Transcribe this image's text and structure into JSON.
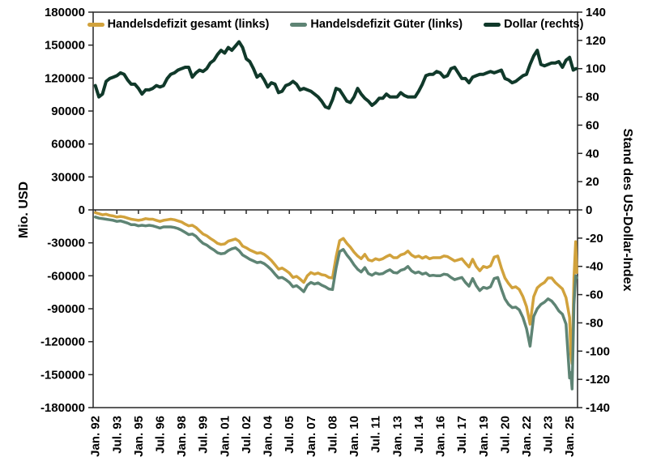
{
  "chart_data": {
    "type": "line",
    "title": "",
    "ylabel_left": "Mio. USD",
    "ylabel_right": "Stand des US-Dollar-Index",
    "ylim_left": [
      -180000,
      180000
    ],
    "ylim_right": [
      -140,
      140
    ],
    "xlim": [
      1991.85,
      2025.55
    ],
    "grid": false,
    "legend_position": "top-inside-horizontal",
    "frame_color": "#262626",
    "text_color": "#000000",
    "yticks_left": [
      180000,
      150000,
      120000,
      90000,
      60000,
      30000,
      0,
      -30000,
      -60000,
      -90000,
      -120000,
      -150000,
      -180000
    ],
    "yticks_right": [
      140,
      120,
      100,
      80,
      60,
      40,
      20,
      0,
      -20,
      -40,
      -60,
      -80,
      -100,
      -120,
      -140
    ],
    "xtick_positions": [
      1992,
      1993.5,
      1995,
      1996.5,
      1998,
      1999.5,
      2001,
      2002.5,
      2004,
      2005.5,
      2007,
      2008.5,
      2010,
      2011.5,
      2013,
      2014.5,
      2016,
      2017.5,
      2019,
      2020.5,
      2022,
      2023.5,
      2025
    ],
    "xtick_labels": [
      "Jan. 92",
      "Jul. 93",
      "Jan. 95",
      "Jul. 96",
      "Jan. 98",
      "Jul. 99",
      "Jan. 01",
      "Jul. 02",
      "Jan. 04",
      "Jul. 05",
      "Jan. 07",
      "Jul. 08",
      "Jan. 10",
      "Jul. 11",
      "Jan. 13",
      "Jul. 14",
      "Jan. 16",
      "Jul. 17",
      "Jan. 19",
      "Jul. 20",
      "Jan. 22",
      "Jul. 23",
      "Jan. 25"
    ],
    "series": [
      {
        "id": "gesamt",
        "name": "Handelsdefizit gesamt (links)",
        "axis": "left",
        "color": "#D1A23C",
        "line_width": 3.5,
        "x_start": 1992.0,
        "x_step": 0.25,
        "values": [
          -2500,
          -3500,
          -4500,
          -4000,
          -5000,
          -5500,
          -6500,
          -6000,
          -6500,
          -7500,
          -8500,
          -9000,
          -9500,
          -9000,
          -8000,
          -8500,
          -8500,
          -9500,
          -10500,
          -9500,
          -9000,
          -8500,
          -9000,
          -10000,
          -11000,
          -13000,
          -14500,
          -14000,
          -16000,
          -19000,
          -22000,
          -23500,
          -26000,
          -28000,
          -30500,
          -31500,
          -31000,
          -28500,
          -27500,
          -26500,
          -28500,
          -33000,
          -34500,
          -36500,
          -38000,
          -39500,
          -39000,
          -40500,
          -43000,
          -46000,
          -50000,
          -54000,
          -53000,
          -55000,
          -57500,
          -61500,
          -60500,
          -63000,
          -66000,
          -60000,
          -57000,
          -58500,
          -57500,
          -59000,
          -59500,
          -61500,
          -62000,
          -43000,
          -28000,
          -26000,
          -30500,
          -34000,
          -38500,
          -42000,
          -44500,
          -40500,
          -45500,
          -46500,
          -44500,
          -45500,
          -44500,
          -42500,
          -41000,
          -43500,
          -43500,
          -41000,
          -40000,
          -37500,
          -41000,
          -43000,
          -42000,
          -44000,
          -42500,
          -44500,
          -43500,
          -43500,
          -43500,
          -42000,
          -42500,
          -44500,
          -46500,
          -45500,
          -44500,
          -48500,
          -52000,
          -45000,
          -51500,
          -55500,
          -51500,
          -52500,
          -51000,
          -43000,
          -42000,
          -53000,
          -62000,
          -67000,
          -71000,
          -70000,
          -72500,
          -79000,
          -88000,
          -104000,
          -79000,
          -71000,
          -68000,
          -66000,
          -62000,
          -62000,
          -66000,
          -69000,
          -72000,
          -80000
        ],
        "tail_x": [
          2025.0,
          2025.08,
          2025.17,
          2025.3,
          2025.42,
          2025.5
        ],
        "tail_values": [
          -98000,
          -131000,
          -140000,
          -62000,
          -29000,
          -57000
        ]
      },
      {
        "id": "gueter",
        "name": "Handelsdefizit Güter (links)",
        "axis": "left",
        "color": "#5E8474",
        "line_width": 3.5,
        "x_start": 1992.0,
        "x_step": 0.25,
        "values": [
          -6500,
          -7500,
          -8000,
          -8500,
          -9000,
          -9500,
          -10500,
          -10000,
          -11000,
          -12000,
          -13500,
          -13500,
          -14500,
          -14000,
          -14500,
          -14000,
          -14500,
          -15500,
          -16500,
          -15500,
          -15500,
          -15500,
          -16000,
          -17000,
          -18500,
          -20500,
          -22500,
          -22000,
          -24000,
          -27500,
          -30500,
          -32000,
          -34500,
          -36500,
          -39000,
          -40000,
          -39500,
          -37000,
          -35500,
          -34500,
          -37000,
          -41000,
          -43000,
          -45000,
          -46500,
          -48000,
          -47500,
          -49000,
          -51500,
          -54500,
          -58500,
          -62000,
          -61500,
          -63500,
          -66000,
          -70000,
          -69000,
          -71500,
          -74500,
          -68500,
          -66000,
          -67500,
          -66500,
          -68500,
          -70000,
          -72000,
          -72500,
          -53000,
          -38000,
          -36000,
          -41000,
          -45000,
          -50000,
          -54000,
          -56500,
          -52500,
          -58000,
          -59500,
          -57500,
          -58500,
          -58000,
          -56000,
          -54500,
          -57000,
          -57500,
          -55000,
          -54000,
          -51500,
          -55500,
          -57500,
          -56500,
          -58500,
          -57500,
          -60000,
          -59500,
          -60000,
          -60000,
          -58500,
          -59000,
          -61500,
          -63500,
          -62500,
          -61500,
          -66000,
          -69500,
          -62500,
          -69000,
          -73500,
          -70500,
          -71500,
          -70000,
          -62500,
          -61500,
          -72000,
          -81000,
          -86000,
          -89000,
          -88500,
          -91000,
          -98000,
          -108000,
          -124000,
          -97000,
          -90000,
          -86000,
          -84000,
          -81000,
          -83000,
          -87000,
          -92000,
          -95000,
          -104000
        ],
        "tail_x": [
          2025.0,
          2025.08,
          2025.17,
          2025.3,
          2025.42,
          2025.5
        ],
        "tail_values": [
          -153000,
          -148000,
          -163000,
          -86000,
          -60000,
          -62000
        ]
      },
      {
        "id": "dollar",
        "name": "Dollar (rechts)",
        "axis": "right",
        "color": "#10392A",
        "line_width": 4,
        "x_start": 1992.0,
        "x_step": 0.25,
        "values": [
          88,
          80,
          82,
          91,
          93,
          94,
          95,
          97,
          96,
          92,
          89,
          89,
          86,
          82,
          85,
          85,
          86,
          88,
          87,
          88,
          93,
          96,
          97,
          99,
          100,
          101,
          101,
          94,
          97,
          99,
          98,
          100,
          104,
          106,
          110,
          113,
          111,
          115,
          113,
          116,
          119,
          115,
          107,
          105,
          100,
          94,
          96,
          92,
          87,
          90,
          89,
          83,
          84,
          88,
          89,
          91,
          89,
          85,
          86,
          85,
          84,
          82,
          80,
          77,
          73,
          72,
          78,
          86,
          85,
          81,
          77,
          76,
          80,
          86,
          82,
          79,
          77,
          74,
          76,
          79,
          79,
          82,
          80,
          80,
          80,
          83,
          81,
          80,
          80,
          80,
          84,
          89,
          95,
          96,
          96,
          98,
          97,
          94,
          95,
          100,
          101,
          97,
          93,
          93,
          90,
          94,
          95,
          96,
          96,
          97,
          98,
          97,
          98,
          99,
          93,
          92,
          90,
          91,
          93,
          95,
          96,
          103,
          109,
          113,
          103,
          102,
          103,
          104,
          104,
          105,
          101,
          106
        ],
        "tail_x": [
          2025.0,
          2025.25,
          2025.45
        ],
        "tail_values": [
          108,
          99,
          100
        ]
      }
    ]
  }
}
